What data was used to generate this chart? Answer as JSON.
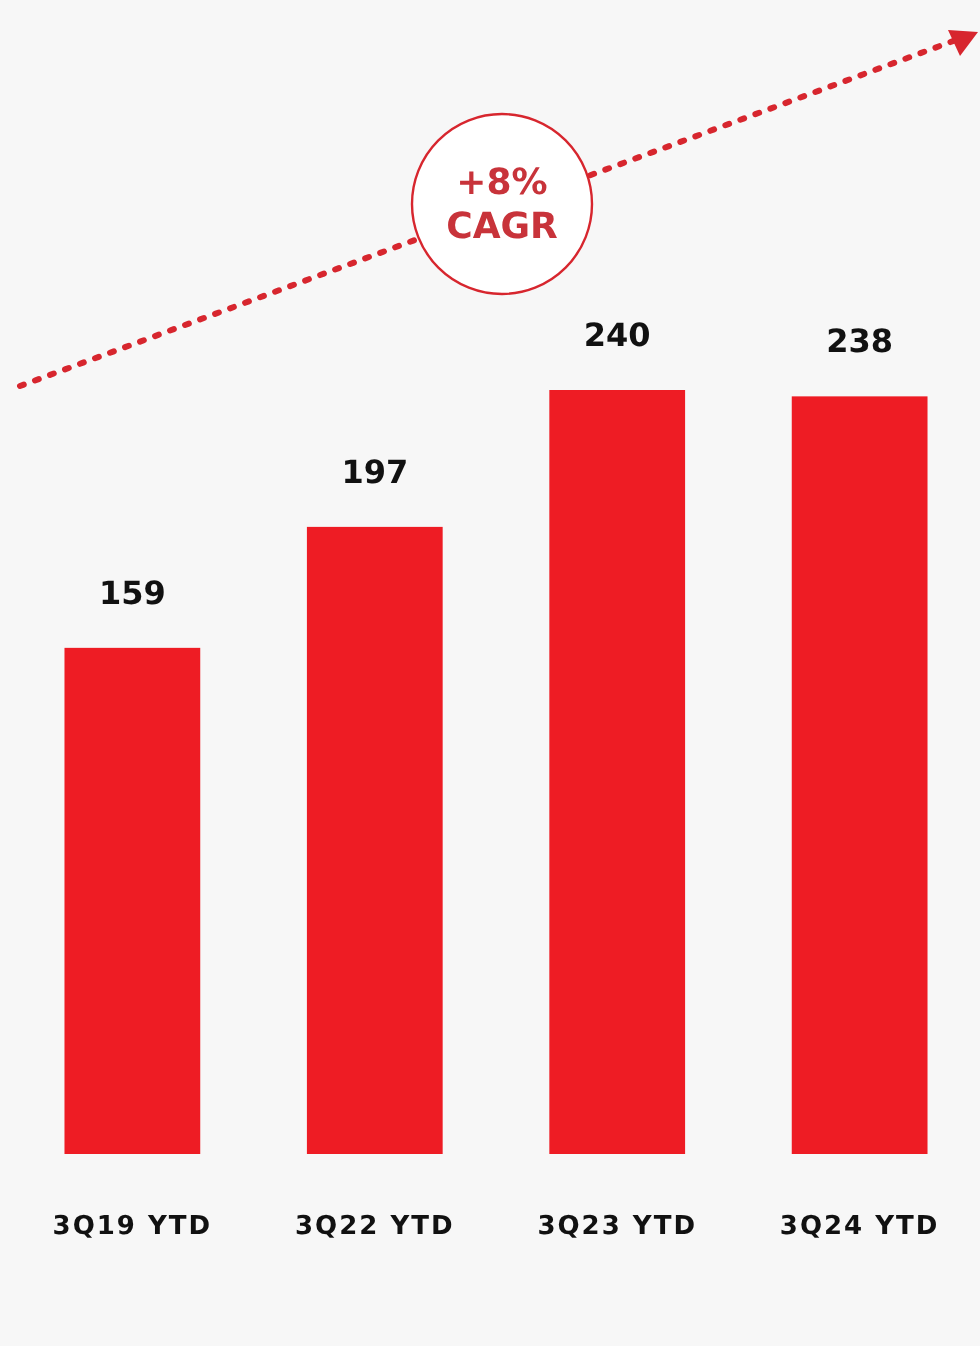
{
  "chart_data": {
    "type": "bar",
    "categories": [
      "3Q19 YTD",
      "3Q22 YTD",
      "3Q23 YTD",
      "3Q24 YTD"
    ],
    "values": [
      159,
      197,
      240,
      238
    ],
    "color": "#ee1c24",
    "data_labels": true,
    "annotations": [
      "+8%\nCAGR"
    ]
  }
}
